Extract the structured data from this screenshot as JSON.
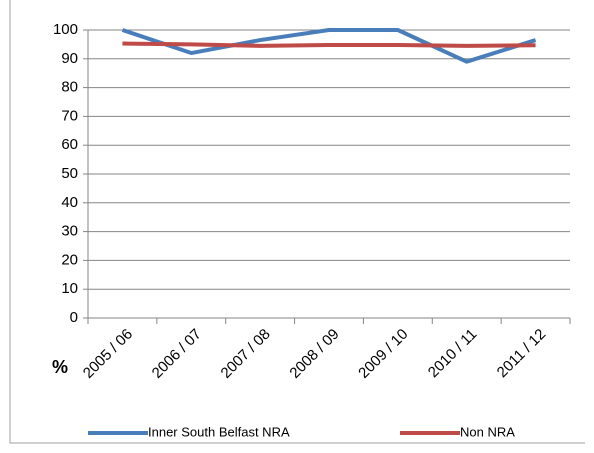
{
  "chart_data": {
    "type": "line",
    "ylabel": "%",
    "categories": [
      "2005 / 06",
      "2006 / 07",
      "2007 / 08",
      "2008 / 09",
      "2009 / 10",
      "2010 / 11",
      "2011 / 12"
    ],
    "series": [
      {
        "name": "Inner South Belfast NRA",
        "color": "#4a7ebb",
        "values": [
          100,
          92,
          96.5,
          100,
          100,
          89,
          96.5
        ]
      },
      {
        "name": "Non NRA",
        "color": "#be4b48",
        "values": [
          95.3,
          95,
          94.5,
          94.8,
          94.8,
          94.5,
          94.7
        ]
      }
    ],
    "ylim": [
      0,
      100
    ],
    "yticks": [
      0,
      10,
      20,
      30,
      40,
      50,
      60,
      70,
      80,
      90,
      100
    ],
    "grid": true,
    "legend": "bottom"
  }
}
